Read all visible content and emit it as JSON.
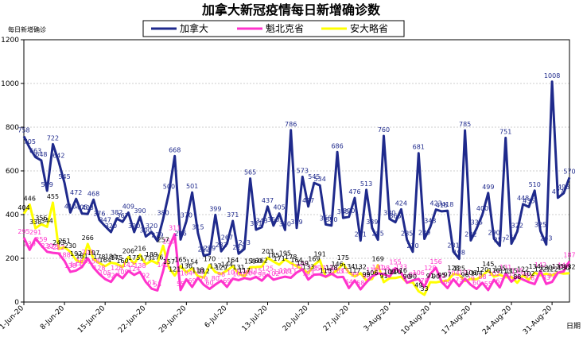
{
  "chart_data": {
    "type": "line",
    "title": "加拿大新冠疫情每日新增确诊数",
    "ylabel": "每日新增确诊",
    "xlabel": "日期",
    "ylim": [
      0,
      1200
    ],
    "yticks": [
      0,
      200,
      400,
      600,
      800,
      1000,
      1200
    ],
    "start_date": "2020-06-01",
    "x_tick_labels": [
      "1-Jun-20",
      "8-Jun-20",
      "15-Jun-20",
      "22-Jun-20",
      "29-Jun-20",
      "6-Jul-20",
      "13-Jul-20",
      "20-Jul-20",
      "27-Jul-20",
      "3-Aug-20",
      "10-Aug-20",
      "17-Aug-20",
      "24-Aug-20",
      "31-Aug-20"
    ],
    "grid": "horizontal",
    "legend_position": "top-center",
    "series": [
      {
        "name": "加拿大",
        "color": "#1f2a8c",
        "values": [
          758,
          705,
          663,
          648,
          509,
          722,
          642,
          545,
          410,
          472,
          405,
          403,
          468,
          376,
          347,
          320,
          382,
          367,
          409,
          320,
          390,
          300,
          320,
          279,
          380,
          500,
          668,
          286,
          370,
          501,
          315,
          212,
          219,
          399,
          232,
          267,
          371,
          221,
          243,
          565,
          331,
          343,
          437,
          350,
          405,
          330,
          786,
          339,
          573,
          437,
          545,
          534,
          355,
          350,
          686,
          385,
          390,
          476,
          281,
          513,
          339,
          285,
          760,
          380,
          365,
          424,
          285,
          230,
          681,
          289,
          343,
          423,
          415,
          418,
          231,
          198,
          785,
          282,
          336,
          400,
          499,
          290,
          257,
          751,
          267,
          322,
          448,
          435,
          510,
          325,
          263,
          1008,
          477,
          498,
          570
        ],
        "labels": [
          758,
          705,
          663,
          648,
          509,
          722,
          642,
          545,
          410,
          472,
          405,
          403,
          468,
          376,
          347,
          320,
          382,
          367,
          409,
          320,
          390,
          300,
          320,
          279,
          380,
          500,
          668,
          286,
          370,
          501,
          315,
          212,
          219,
          399,
          232,
          267,
          371,
          221,
          243,
          565,
          331,
          343,
          437,
          350,
          405,
          330,
          786,
          339,
          573,
          437,
          545,
          534,
          355,
          350,
          686,
          385,
          390,
          476,
          281,
          513,
          339,
          285,
          760,
          380,
          365,
          424,
          285,
          230,
          681,
          289,
          343,
          423,
          415,
          418,
          231,
          198,
          785,
          282,
          336,
          400,
          499,
          290,
          257,
          751,
          267,
          322,
          448,
          435,
          510,
          325,
          263,
          1008,
          477,
          498,
          570
        ]
      },
      {
        "name": "魁北克省",
        "color": "#ff33cc",
        "values": [
          295,
          239,
          291,
          259,
          230,
          225,
          222,
          188,
          138,
          144,
          160,
          200,
          158,
          128,
          105,
          92,
          128,
          109,
          142,
          124,
          138,
          92,
          61,
          53,
          142,
          250,
          311,
          55,
          104,
          69,
          111,
          79,
          60,
          80,
          98,
          69,
          107,
          100,
          110,
          104,
          115,
          98,
          125,
          102,
          110,
          116,
          111,
          135,
          150,
          103,
          125,
          127,
          116,
          130,
          113,
          115,
          64,
          99,
          58,
          90,
          118,
          131,
          128,
          116,
          155,
          133,
          88,
          99,
          106,
          70,
          128,
          156,
          91,
          64,
          104,
          73,
          107,
          79,
          60,
          88,
          55,
          102,
          67,
          131,
          93,
          115,
          103,
          91,
          82,
          142,
          83,
          92,
          134,
          140,
          187
        ],
        "labels": [
          295,
          239,
          291,
          259,
          230,
          225,
          222,
          188,
          138,
          144,
          160,
          200,
          158,
          128,
          105,
          92,
          128,
          109,
          142,
          124,
          138,
          92,
          61,
          53,
          142,
          250,
          311,
          55,
          104,
          69,
          111,
          79,
          60,
          80,
          98,
          69,
          107,
          100,
          110,
          104,
          115,
          98,
          125,
          102,
          110,
          116,
          111,
          135,
          150,
          103,
          125,
          127,
          116,
          130,
          113,
          115,
          64,
          99,
          58,
          90,
          118,
          131,
          128,
          116,
          155,
          133,
          88,
          99,
          106,
          70,
          128,
          156,
          91,
          64,
          104,
          73,
          107,
          79,
          60,
          88,
          55,
          102,
          67,
          131,
          93,
          115,
          103,
          91,
          82,
          142,
          83,
          92,
          134,
          140,
          187
        ]
      },
      {
        "name": "安大略省",
        "color": "#ffff00",
        "values": [
          404,
          446,
          338,
          356,
          344,
          455,
          243,
          251,
          230,
          192,
          181,
          266,
          197,
          178,
          164,
          180,
          175,
          160,
          206,
          175,
          216,
          173,
          189,
          176,
          257,
          157,
          121,
          165,
          136,
          154,
          118,
          112,
          170,
          137,
          129,
          144,
          164,
          131,
          117,
          159,
          160,
          162,
          203,
          185,
          171,
          195,
          178,
          164,
          149,
          133,
          169,
          191,
          115,
          128,
          146,
          175,
          134,
          117,
          132,
          99,
          106,
          169,
          91,
          109,
          110,
          116,
          90,
          90,
          49,
          33,
          91,
          90,
          95,
          97,
          128,
          125,
          96,
          106,
          104,
          120,
          145,
          116,
          125,
          113,
          115,
          88,
          122,
          102,
          134,
          122,
          130,
          122,
          135,
          130,
          132
        ],
        "labels": [
          404,
          446,
          338,
          356,
          344,
          455,
          243,
          251,
          230,
          192,
          181,
          266,
          197,
          178,
          164,
          180,
          175,
          160,
          206,
          175,
          216,
          173,
          189,
          176,
          257,
          157,
          121,
          165,
          136,
          154,
          118,
          112,
          170,
          137,
          129,
          144,
          164,
          131,
          117,
          159,
          160,
          162,
          203,
          185,
          171,
          195,
          178,
          164,
          149,
          133,
          169,
          191,
          115,
          128,
          146,
          175,
          134,
          117,
          132,
          99,
          106,
          169,
          91,
          109,
          110,
          116,
          90,
          90,
          49,
          33,
          91,
          90,
          95,
          97,
          128,
          125,
          96,
          106,
          104,
          120,
          145,
          116,
          125,
          113,
          115,
          88,
          122,
          102,
          134,
          122,
          130,
          122,
          135,
          130,
          132
        ]
      }
    ]
  }
}
